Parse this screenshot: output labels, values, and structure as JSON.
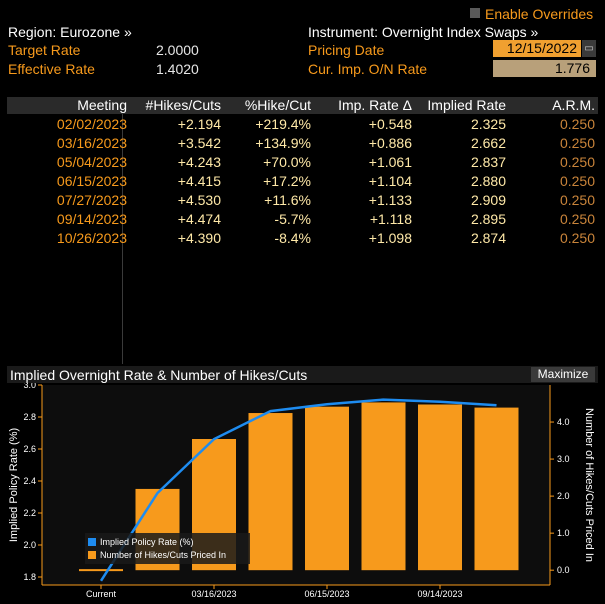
{
  "header": {
    "region_label": "Region: Eurozone »",
    "instrument_label": "Instrument: Overnight Index Swaps »",
    "enable_overrides": "Enable Overrides",
    "target_rate_label": "Target Rate",
    "target_rate_value": "2.0000",
    "effective_rate_label": "Effective Rate",
    "effective_rate_value": "1.4020",
    "pricing_date_label": "Pricing Date",
    "pricing_date_value": "12/15/2022",
    "cur_imp_label": "Cur. Imp. O/N Rate",
    "cur_imp_value": "1.776"
  },
  "table": {
    "columns": [
      "Meeting",
      "#Hikes/Cuts",
      "%Hike/Cut",
      "Imp. Rate Δ",
      "Implied Rate",
      "A.R.M."
    ],
    "rows": [
      [
        "02/02/2023",
        "+2.194",
        "+219.4%",
        "+0.548",
        "2.325",
        "0.250"
      ],
      [
        "03/16/2023",
        "+3.542",
        "+134.9%",
        "+0.886",
        "2.662",
        "0.250"
      ],
      [
        "05/04/2023",
        "+4.243",
        "+70.0%",
        "+1.061",
        "2.837",
        "0.250"
      ],
      [
        "06/15/2023",
        "+4.415",
        "+17.2%",
        "+1.104",
        "2.880",
        "0.250"
      ],
      [
        "07/27/2023",
        "+4.530",
        "+11.6%",
        "+1.133",
        "2.909",
        "0.250"
      ],
      [
        "09/14/2023",
        "+4.474",
        "-5.7%",
        "+1.118",
        "2.895",
        "0.250"
      ],
      [
        "10/26/2023",
        "+4.390",
        "-8.4%",
        "+1.098",
        "2.874",
        "0.250"
      ]
    ]
  },
  "chart_panel": {
    "title": "Implied Overnight Rate & Number of Hikes/Cuts",
    "maximize_label": "Maximize"
  },
  "chart_data": {
    "type": "bar",
    "categories": [
      "Current",
      "02/02/2023",
      "03/16/2023",
      "05/04/2023",
      "06/15/2023",
      "07/27/2023",
      "09/14/2023",
      "10/26/2023"
    ],
    "x_tick_labels": [
      "Current",
      "03/16/2023",
      "06/15/2023",
      "09/14/2023"
    ],
    "series": [
      {
        "name": "Implied Policy Rate (%)",
        "type": "line",
        "axis": "left",
        "color": "#1e8cf0",
        "values": [
          1.776,
          2.325,
          2.662,
          2.837,
          2.88,
          2.909,
          2.895,
          2.874
        ]
      },
      {
        "name": "Number of Hikes/Cuts Priced In",
        "type": "bar",
        "axis": "right",
        "color": "#f79a1c",
        "values": [
          0,
          2.194,
          3.542,
          4.243,
          4.415,
          4.53,
          4.474,
          4.39
        ]
      }
    ],
    "ylabel": "Implied Policy Rate (%)",
    "y2label": "Number of Hikes/Cuts Priced In",
    "ylim": [
      1.75,
      3.0
    ],
    "y_ticks": [
      "1.8",
      "2.0",
      "2.2",
      "2.4",
      "2.6",
      "2.8",
      "3.0"
    ],
    "y2lim": [
      -0.4,
      5.0
    ],
    "y2_ticks": [
      "0.0",
      "1.0",
      "2.0",
      "3.0",
      "4.0"
    ],
    "legend_position": "bottom-left"
  }
}
